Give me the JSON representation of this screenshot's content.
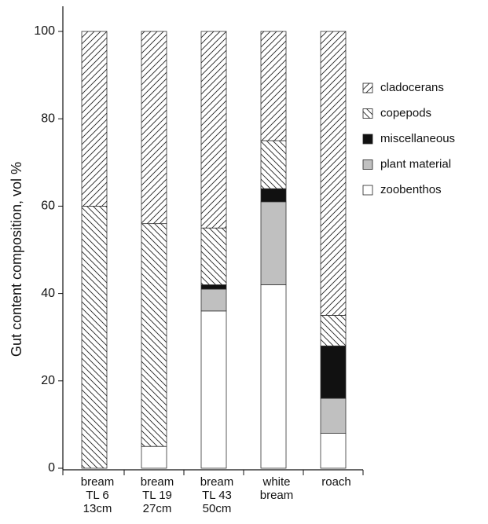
{
  "chart_data": {
    "type": "stacked_bar",
    "y_label": "Gut content composition, vol %",
    "categories": [
      [
        "bream",
        "TL 6",
        "13cm"
      ],
      [
        "bream",
        "TL 19",
        "27cm"
      ],
      [
        "bream",
        "TL 43",
        "50cm"
      ],
      [
        "white",
        "bream"
      ],
      [
        "roach"
      ]
    ],
    "series": [
      {
        "name": "zoobenthos",
        "color": "#ffffff",
        "hatch": "none",
        "values": [
          0,
          5,
          36,
          42,
          8
        ]
      },
      {
        "name": "plant material",
        "color": "#c0c0c0",
        "hatch": "none",
        "values": [
          0,
          0,
          5,
          19,
          8
        ]
      },
      {
        "name": "miscellaneous",
        "color": "#111111",
        "hatch": "none",
        "values": [
          0,
          0,
          1,
          3,
          12
        ]
      },
      {
        "name": "copepods",
        "color": "#ffffff",
        "hatch": "backslash",
        "values": [
          60,
          51,
          13,
          11,
          7
        ]
      },
      {
        "name": "cladocerans",
        "color": "#ffffff",
        "hatch": "slash",
        "values": [
          40,
          44,
          45,
          25,
          65
        ]
      }
    ],
    "ylim": [
      0,
      100
    ],
    "yticks": [
      0,
      20,
      40,
      60,
      80,
      100
    ],
    "grid": false,
    "legend": "right"
  }
}
